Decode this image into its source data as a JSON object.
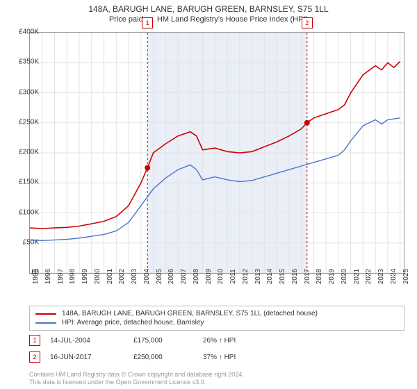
{
  "title": "148A, BARUGH LANE, BARUGH GREEN, BARNSLEY, S75 1LL",
  "subtitle": "Price paid vs. HM Land Registry's House Price Index (HPI)",
  "chart": {
    "type": "line",
    "background_color": "#ffffff",
    "grid_color": "#e2e2e2",
    "border_color": "#999999",
    "x_years": [
      1995,
      1996,
      1997,
      1998,
      1999,
      2000,
      2001,
      2002,
      2003,
      2004,
      2005,
      2006,
      2007,
      2008,
      2009,
      2010,
      2011,
      2012,
      2013,
      2014,
      2015,
      2016,
      2017,
      2018,
      2019,
      2020,
      2021,
      2022,
      2023,
      2024,
      2025
    ],
    "x_range": [
      1995,
      2025.3
    ],
    "ylim": [
      0,
      400000
    ],
    "ytick_step": 50000,
    "ytick_labels": [
      "£0",
      "£50K",
      "£100K",
      "£150K",
      "£200K",
      "£250K",
      "£300K",
      "£350K",
      "£400K"
    ],
    "shaded_region": {
      "from_year": 2004.53,
      "to_year": 2017.46,
      "fill": "#e9eef7"
    },
    "series": [
      {
        "name": "property",
        "label": "148A, BARUGH LANE, BARUGH GREEN, BARNSLEY, S75 1LL (detached house)",
        "color": "#cc0000",
        "line_width": 1.6,
        "data": [
          [
            1995,
            75000
          ],
          [
            1996,
            74000
          ],
          [
            1997,
            75000
          ],
          [
            1998,
            76000
          ],
          [
            1999,
            78000
          ],
          [
            2000,
            82000
          ],
          [
            2001,
            86000
          ],
          [
            2002,
            94000
          ],
          [
            2003,
            112000
          ],
          [
            2004,
            150000
          ],
          [
            2004.53,
            175000
          ],
          [
            2005,
            200000
          ],
          [
            2006,
            215000
          ],
          [
            2007,
            228000
          ],
          [
            2008,
            235000
          ],
          [
            2008.5,
            228000
          ],
          [
            2009,
            205000
          ],
          [
            2010,
            208000
          ],
          [
            2011,
            202000
          ],
          [
            2012,
            200000
          ],
          [
            2013,
            202000
          ],
          [
            2014,
            210000
          ],
          [
            2015,
            218000
          ],
          [
            2016,
            228000
          ],
          [
            2017,
            240000
          ],
          [
            2017.46,
            250000
          ],
          [
            2018,
            258000
          ],
          [
            2019,
            265000
          ],
          [
            2020,
            272000
          ],
          [
            2020.5,
            280000
          ],
          [
            2021,
            300000
          ],
          [
            2022,
            330000
          ],
          [
            2023,
            345000
          ],
          [
            2023.5,
            338000
          ],
          [
            2024,
            350000
          ],
          [
            2024.5,
            342000
          ],
          [
            2025,
            352000
          ]
        ]
      },
      {
        "name": "hpi",
        "label": "HPI: Average price, detached house, Barnsley",
        "color": "#4a74c9",
        "line_width": 1.4,
        "data": [
          [
            1995,
            55000
          ],
          [
            1996,
            54000
          ],
          [
            1997,
            55000
          ],
          [
            1998,
            56000
          ],
          [
            1999,
            58000
          ],
          [
            2000,
            61000
          ],
          [
            2001,
            64000
          ],
          [
            2002,
            70000
          ],
          [
            2003,
            84000
          ],
          [
            2004,
            112000
          ],
          [
            2005,
            140000
          ],
          [
            2006,
            158000
          ],
          [
            2007,
            172000
          ],
          [
            2008,
            180000
          ],
          [
            2008.5,
            172000
          ],
          [
            2009,
            155000
          ],
          [
            2010,
            160000
          ],
          [
            2011,
            155000
          ],
          [
            2012,
            152000
          ],
          [
            2013,
            154000
          ],
          [
            2014,
            160000
          ],
          [
            2015,
            166000
          ],
          [
            2016,
            172000
          ],
          [
            2017,
            178000
          ],
          [
            2018,
            184000
          ],
          [
            2019,
            190000
          ],
          [
            2020,
            196000
          ],
          [
            2020.5,
            205000
          ],
          [
            2021,
            220000
          ],
          [
            2022,
            245000
          ],
          [
            2023,
            255000
          ],
          [
            2023.5,
            248000
          ],
          [
            2024,
            255000
          ],
          [
            2025,
            258000
          ]
        ]
      }
    ],
    "event_markers": [
      {
        "n": "1",
        "year": 2004.53,
        "value": 175000
      },
      {
        "n": "2",
        "year": 2017.46,
        "value": 250000
      }
    ],
    "marker_line_color": "#cc0000",
    "marker_dot_color": "#cc0000",
    "vline_dash": "3,3",
    "label_fontsize": 10
  },
  "legend": {
    "items": [
      {
        "color": "#cc0000",
        "text": "148A, BARUGH LANE, BARUGH GREEN, BARNSLEY, S75 1LL (detached house)"
      },
      {
        "color": "#4a74c9",
        "text": "HPI: Average price, detached house, Barnsley"
      }
    ]
  },
  "transactions": [
    {
      "n": "1",
      "date": "14-JUL-2004",
      "price": "£175,000",
      "diff": "26% ↑ HPI"
    },
    {
      "n": "2",
      "date": "16-JUN-2017",
      "price": "£250,000",
      "diff": "37% ↑ HPI"
    }
  ],
  "footer_line1": "Contains HM Land Registry data © Crown copyright and database right 2024.",
  "footer_line2": "This data is licensed under the Open Government Licence v3.0."
}
